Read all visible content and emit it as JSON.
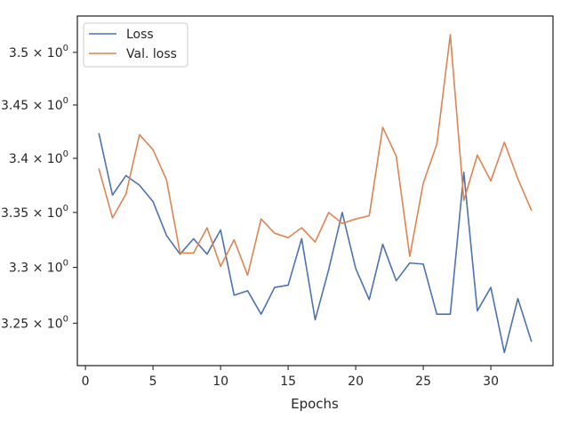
{
  "chart_data": {
    "type": "line",
    "xlabel": "Epochs",
    "ylabel": "",
    "xlim": [
      -0.6,
      34.6
    ],
    "ylim": [
      3.2125,
      3.535
    ],
    "y_scale": "log",
    "grid": false,
    "legend_position": "top-left",
    "x_ticks": [
      0,
      5,
      10,
      15,
      20,
      25,
      30
    ],
    "y_ticks": [
      3.25,
      3.3,
      3.35,
      3.4,
      3.45,
      3.5
    ],
    "y_tick_labels": [
      {
        "base": "3.25",
        "sup": "0"
      },
      {
        "base": "3.3",
        "sup": "0"
      },
      {
        "base": "3.35",
        "sup": "0"
      },
      {
        "base": "3.4",
        "sup": "0"
      },
      {
        "base": "3.45",
        "sup": "0"
      },
      {
        "base": "3.5",
        "sup": "0"
      }
    ],
    "x": [
      1,
      2,
      3,
      4,
      5,
      6,
      7,
      8,
      9,
      10,
      11,
      12,
      13,
      14,
      15,
      16,
      17,
      18,
      19,
      20,
      21,
      22,
      23,
      24,
      25,
      26,
      27,
      28,
      29,
      30,
      31,
      32,
      33
    ],
    "series": [
      {
        "name": "Loss",
        "color": "#4c72b0",
        "values": [
          3.423,
          3.366,
          3.384,
          3.375,
          3.36,
          3.329,
          3.312,
          3.326,
          3.312,
          3.334,
          3.275,
          3.279,
          3.258,
          3.282,
          3.284,
          3.326,
          3.253,
          3.298,
          3.35,
          3.299,
          3.271,
          3.321,
          3.288,
          3.304,
          3.303,
          3.258,
          3.258,
          3.387,
          3.261,
          3.282,
          3.224,
          3.272,
          3.234
        ]
      },
      {
        "name": "Val. loss",
        "color": "#dd8452",
        "values": [
          3.39,
          3.345,
          3.367,
          3.422,
          3.408,
          3.38,
          3.313,
          3.313,
          3.336,
          3.301,
          3.325,
          3.293,
          3.344,
          3.331,
          3.327,
          3.336,
          3.323,
          3.35,
          3.34,
          3.344,
          3.347,
          3.429,
          3.402,
          3.31,
          3.377,
          3.413,
          3.517,
          3.361,
          3.403,
          3.379,
          3.415,
          3.381,
          3.352
        ]
      }
    ]
  }
}
